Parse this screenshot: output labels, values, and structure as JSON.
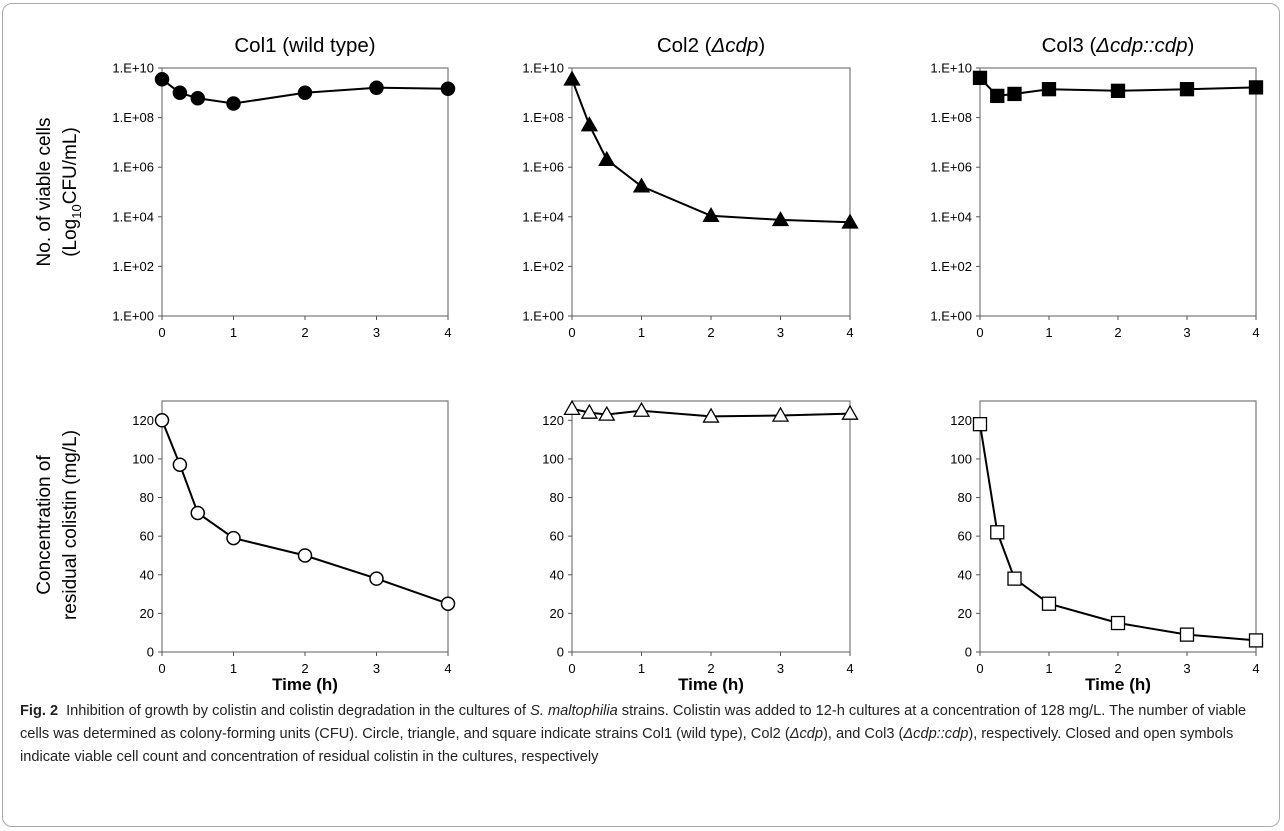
{
  "panel_titles": [
    {
      "pre": "Col1 (wild type)",
      "it": "",
      "post": ""
    },
    {
      "pre": "Col2 (",
      "it": "Δcdp",
      "post": ")"
    },
    {
      "pre": "Col3 (",
      "it": "Δcdp::cdp",
      "post": ")"
    }
  ],
  "top_ylabel": {
    "line1": "No. of viable cells",
    "line2_pre": "(Log",
    "line2_sub": "10",
    "line2_post": "CFU/mL)"
  },
  "bottom_ylabel": {
    "line1": "Concentration of",
    "line2": "residual colistin (mg/L)"
  },
  "xlabel": "Time (h)",
  "caption": {
    "label": "Fig. 2",
    "parts": [
      {
        "t": "Inhibition of growth by colistin and colistin degradation in the cultures of ",
        "i": false
      },
      {
        "t": "S. maltophilia",
        "i": true
      },
      {
        "t": " strains. Colistin was added to 12-h cultures at a concentration of 128 mg/L. The number of viable cells was determined as colony-forming units (CFU). Circle, triangle, and square indicate strains Col1 (wild type), Col2 (",
        "i": false
      },
      {
        "t": "Δcdp",
        "i": true
      },
      {
        "t": "), and Col3 (",
        "i": false
      },
      {
        "t": "Δcdp::cdp",
        "i": true
      },
      {
        "t": "), respectively. Closed and open symbols indicate viable cell count and concentration of residual colistin in the cultures, respectively",
        "i": false
      }
    ]
  },
  "chart_data": [
    {
      "type": "line",
      "title": "Col1 (wild type)",
      "xlabel": "",
      "ylabel": "No. of viable cells (Log10CFU/mL)",
      "yscale": "log",
      "ylim": [
        1,
        10000000000
      ],
      "xlim": [
        0,
        4
      ],
      "x_ticks": [
        "0",
        "1",
        "2",
        "3",
        "4"
      ],
      "y_ticks": [
        "1.E+00",
        "1.E+02",
        "1.E+04",
        "1.E+06",
        "1.E+08",
        "1.E+10"
      ],
      "marker": "circle",
      "filled": true,
      "x": [
        0,
        0.25,
        0.5,
        1,
        2,
        3,
        4
      ],
      "y": [
        3500000000,
        1000000000,
        600000000,
        370000000,
        1000000000,
        1600000000,
        1450000000
      ]
    },
    {
      "type": "line",
      "title": "Col2 (Δcdp)",
      "xlabel": "",
      "ylabel": "",
      "yscale": "log",
      "ylim": [
        1,
        10000000000
      ],
      "xlim": [
        0,
        4
      ],
      "x_ticks": [
        "0",
        "1",
        "2",
        "3",
        "4"
      ],
      "y_ticks": [
        "1.E+00",
        "1.E+02",
        "1.E+04",
        "1.E+06",
        "1.E+08",
        "1.E+10"
      ],
      "marker": "triangle",
      "filled": true,
      "x": [
        0,
        0.25,
        0.5,
        1,
        2,
        3,
        4
      ],
      "y": [
        3500000000,
        50000000,
        2000000,
        170000,
        11000,
        7500,
        6000
      ]
    },
    {
      "type": "line",
      "title": "Col3 (Δcdp::cdp)",
      "xlabel": "",
      "ylabel": "",
      "yscale": "log",
      "ylim": [
        1,
        10000000000
      ],
      "xlim": [
        0,
        4
      ],
      "x_ticks": [
        "0",
        "1",
        "2",
        "3",
        "4"
      ],
      "y_ticks": [
        "1.E+00",
        "1.E+02",
        "1.E+04",
        "1.E+06",
        "1.E+08",
        "1.E+10"
      ],
      "marker": "square",
      "filled": true,
      "x": [
        0,
        0.25,
        0.5,
        1,
        2,
        3,
        4
      ],
      "y": [
        4000000000,
        750000000,
        900000000,
        1400000000,
        1200000000,
        1400000000,
        1650000000
      ]
    },
    {
      "type": "line",
      "title": "",
      "xlabel": "Time (h)",
      "ylabel": "Concentration of residual colistin (mg/L)",
      "yscale": "linear",
      "ylim": [
        0,
        130
      ],
      "xlim": [
        0,
        4
      ],
      "x_ticks": [
        "0",
        "1",
        "2",
        "3",
        "4"
      ],
      "y_ticks": [
        "0",
        "20",
        "40",
        "60",
        "80",
        "100",
        "120"
      ],
      "marker": "circle",
      "filled": false,
      "x": [
        0,
        0.25,
        0.5,
        1,
        2,
        3,
        4
      ],
      "y": [
        120,
        97,
        72,
        59,
        50,
        38,
        25
      ]
    },
    {
      "type": "line",
      "title": "",
      "xlabel": "Time (h)",
      "ylabel": "",
      "yscale": "linear",
      "ylim": [
        0,
        130
      ],
      "xlim": [
        0,
        4
      ],
      "x_ticks": [
        "0",
        "1",
        "2",
        "3",
        "4"
      ],
      "y_ticks": [
        "0",
        "20",
        "40",
        "60",
        "80",
        "100",
        "120"
      ],
      "marker": "triangle",
      "filled": false,
      "x": [
        0,
        0.25,
        0.5,
        1,
        2,
        3,
        4
      ],
      "y": [
        126,
        124,
        123,
        125,
        122,
        122.5,
        123.5
      ]
    },
    {
      "type": "line",
      "title": "",
      "xlabel": "Time (h)",
      "ylabel": "",
      "yscale": "linear",
      "ylim": [
        0,
        130
      ],
      "xlim": [
        0,
        4
      ],
      "x_ticks": [
        "0",
        "1",
        "2",
        "3",
        "4"
      ],
      "y_ticks": [
        "0",
        "20",
        "40",
        "60",
        "80",
        "100",
        "120"
      ],
      "marker": "square",
      "filled": false,
      "x": [
        0,
        0.25,
        0.5,
        1,
        2,
        3,
        4
      ],
      "y": [
        118,
        62,
        38,
        25,
        15,
        9,
        6
      ]
    }
  ]
}
